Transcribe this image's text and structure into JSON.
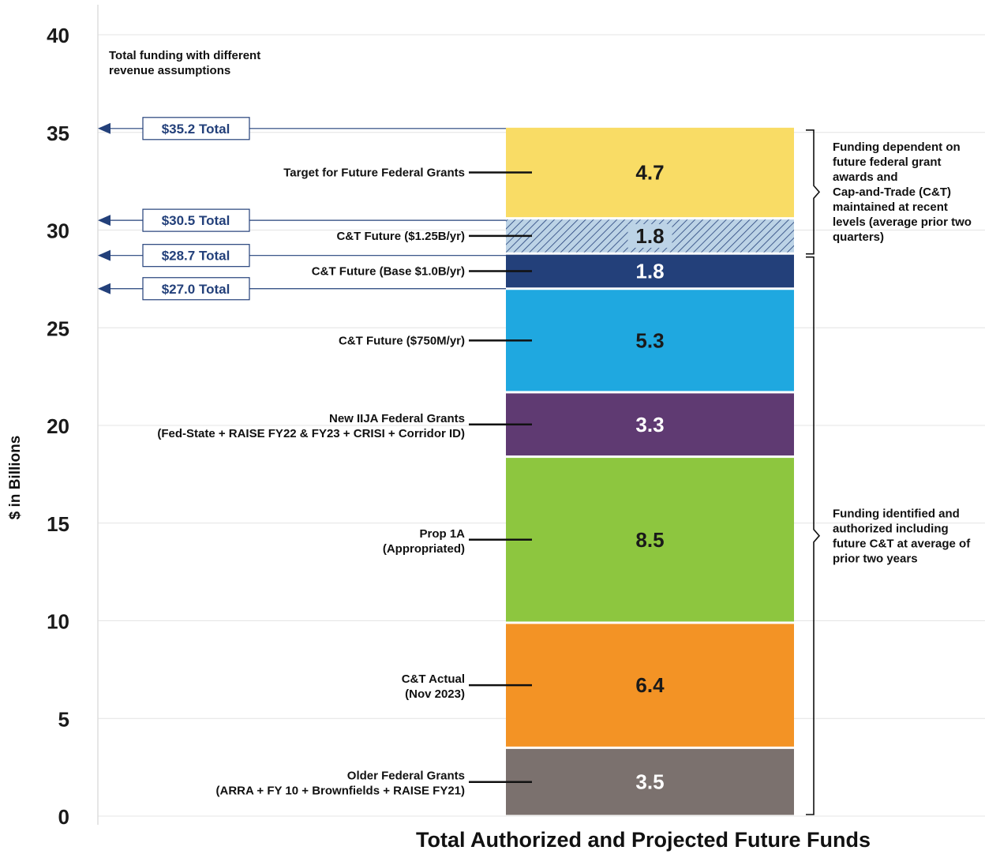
{
  "chart_data": {
    "type": "bar",
    "subtype": "stacked-single",
    "xlabel": "Total Authorized and Projected Future Funds",
    "ylabel": "$ in Billions",
    "ylim": [
      0,
      40
    ],
    "yticks": [
      0,
      5,
      10,
      15,
      20,
      25,
      30,
      35,
      40
    ],
    "grid": true,
    "segments": [
      {
        "label": "Older Federal Grants",
        "sublabel": "(ARRA + FY 10 + Brownfields + RAISE FY21)",
        "value": 3.5,
        "value_text": "3.5",
        "color": "#7b716e",
        "text_color": "#ffffff"
      },
      {
        "label": "C&T Actual",
        "sublabel": "(Nov 2023)",
        "value": 6.4,
        "value_text": "6.4",
        "color": "#f39325",
        "text_color": "#1a1a1a"
      },
      {
        "label": "Prop 1A",
        "sublabel": "(Appropriated)",
        "value": 8.5,
        "value_text": "8.5",
        "color": "#8dc63f",
        "text_color": "#1a1a1a"
      },
      {
        "label": "New IIJA Federal Grants",
        "sublabel": "(Fed-State + RAISE FY22 & FY23 + CRISI + Corridor ID)",
        "value": 3.3,
        "value_text": "3.3",
        "color": "#5f3a72",
        "text_color": "#ffffff"
      },
      {
        "label": "C&T Future ($750M/yr)",
        "sublabel": "",
        "value": 5.3,
        "value_text": "5.3",
        "color": "#1fa8e0",
        "text_color": "#1a1a1a"
      },
      {
        "label": "C&T Future (Base $1.0B/yr)",
        "sublabel": "",
        "value": 1.8,
        "value_text": "1.8",
        "color": "#23407a",
        "text_color": "#ffffff"
      },
      {
        "label": "C&T Future ($1.25B/yr)",
        "sublabel": "",
        "value": 1.8,
        "value_text": "1.8",
        "color": "#bcd3e6",
        "text_color": "#1a1a1a",
        "pattern": "hatch"
      },
      {
        "label": "Target for Future Federal Grants",
        "sublabel": "",
        "value": 4.7,
        "value_text": "4.7",
        "color": "#f9dc65",
        "text_color": "#1a1a1a"
      }
    ],
    "totals_title": [
      "Total funding with different",
      "revenue assumptions"
    ],
    "totals": [
      {
        "label": "$35.2 Total",
        "value": 35.2
      },
      {
        "label": "$30.5 Total",
        "value": 30.5
      },
      {
        "label": "$28.7 Total",
        "value": 28.7
      },
      {
        "label": "$27.0 Total",
        "value": 27.0
      }
    ],
    "bracket_notes": [
      {
        "from": 28.7,
        "to": 35.2,
        "text": [
          "Funding dependent on",
          "future federal grant",
          "awards and",
          "Cap-and-Trade (C&T)",
          "maintained at recent",
          "levels (average prior two",
          "quarters)"
        ]
      },
      {
        "from": 0,
        "to": 28.7,
        "text": [
          "Funding identified and",
          "authorized including",
          "future C&T at average of",
          "prior two years"
        ]
      }
    ]
  }
}
